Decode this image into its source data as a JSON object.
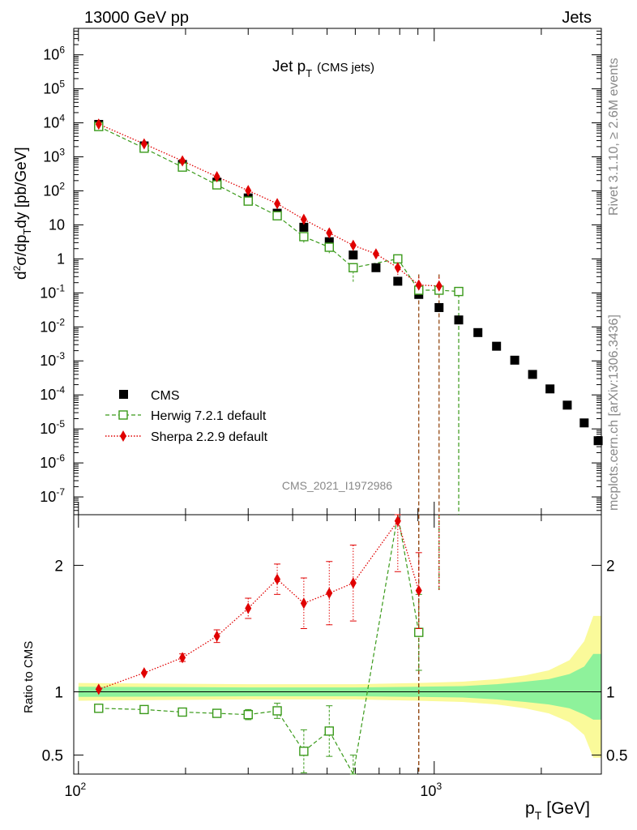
{
  "header": {
    "left": "13000 GeV pp",
    "right": "Jets"
  },
  "side_labels": {
    "rivet": "Rivet 3.1.10, ≥ 2.6M events",
    "mcplots": "mcplots.cern.ch [arXiv:1306.3436]"
  },
  "analysis_tag": "CMS_2021_I1972986",
  "main_title": {
    "base": "Jet p",
    "sub": "T",
    "extra": "(CMS jets)"
  },
  "ylabel_main": "d²σ/dp_T dy [pb/GeV]",
  "ylabel_ratio": "Ratio to CMS",
  "xlabel": {
    "base": "p",
    "sub": "T",
    "unit": "[GeV]"
  },
  "legend": [
    {
      "key": "cms",
      "label": "CMS"
    },
    {
      "key": "herwig",
      "label": "Herwig 7.2.1 default"
    },
    {
      "key": "sherpa",
      "label": "Sherpa 2.2.9 default"
    }
  ],
  "colors": {
    "cms": "#000000",
    "herwig": "#3a9a1a",
    "sherpa": "#e00000",
    "band_inner": "#8ef29b",
    "band_outer": "#fafa9a",
    "vline": "#8b3a00"
  },
  "chart_data": {
    "type": "scatter",
    "x_scale": "log",
    "y_scale_main": "log",
    "xlim": [
      97,
      2950
    ],
    "ylim_main": [
      3e-08,
      6000000.0
    ],
    "ylim_ratio": [
      0.35,
      2.4
    ],
    "y_ticks_main": [
      {
        "v": 1000000.0,
        "m": "10",
        "e": "6"
      },
      {
        "v": 100000.0,
        "m": "10",
        "e": "5"
      },
      {
        "v": 10000.0,
        "m": "10",
        "e": "4"
      },
      {
        "v": 1000.0,
        "m": "10",
        "e": "3"
      },
      {
        "v": 100.0,
        "m": "10",
        "e": "2"
      },
      {
        "v": 10,
        "m": "10",
        "e": ""
      },
      {
        "v": 1,
        "m": "1",
        "e": ""
      },
      {
        "v": 0.1,
        "m": "10",
        "e": "-1"
      },
      {
        "v": 0.01,
        "m": "10",
        "e": "-2"
      },
      {
        "v": 0.001,
        "m": "10",
        "e": "-3"
      },
      {
        "v": 0.0001,
        "m": "10",
        "e": "-4"
      },
      {
        "v": 1e-05,
        "m": "10",
        "e": "-5"
      },
      {
        "v": 1e-06,
        "m": "10",
        "e": "-6"
      },
      {
        "v": 1e-07,
        "m": "10",
        "e": "-7"
      }
    ],
    "y_ticks_ratio": [
      {
        "v": 2,
        "label": "2"
      },
      {
        "v": 1,
        "label": "1"
      },
      {
        "v": 0.5,
        "label": "0.5"
      }
    ],
    "x_ticks": [
      {
        "v": 100,
        "m": "10",
        "e": "2"
      },
      {
        "v": 1000,
        "m": "10",
        "e": "3"
      }
    ],
    "series": [
      {
        "name": "CMS",
        "key": "cms",
        "x": [
          114,
          153,
          196,
          245,
          300,
          362,
          430,
          507,
          592,
          686,
          790,
          905,
          1032,
          1172,
          1327,
          1497,
          1684,
          1890,
          2116,
          2366,
          2640,
          2890
        ],
        "y": [
          9000,
          2100,
          600,
          180,
          62,
          22,
          8.5,
          3.2,
          1.3,
          0.55,
          0.22,
          0.09,
          0.037,
          0.016,
          0.0068,
          0.0027,
          0.00105,
          0.0004,
          0.00015,
          5e-05,
          1.5e-05,
          4.5e-06
        ]
      },
      {
        "name": "Herwig 7.2.1 default",
        "key": "herwig",
        "x": [
          114,
          153,
          196,
          245,
          300,
          362,
          430,
          507,
          592,
          790,
          905,
          1032,
          1172
        ],
        "y": [
          7800,
          1800,
          500,
          150,
          50,
          18.5,
          4.5,
          2.2,
          0.55,
          1.0,
          0.12,
          0.12,
          0.11
        ],
        "yerr_lo": [
          0,
          0,
          0,
          25,
          8,
          4,
          1.5,
          0.8,
          0.35,
          0,
          0.12,
          0.12,
          0.11
        ],
        "yerr_hi": [
          0,
          0,
          0,
          25,
          8,
          4,
          1.5,
          0.8,
          0.2,
          0,
          0.12,
          0.12,
          0.11
        ]
      },
      {
        "name": "Sherpa 2.2.9 default",
        "key": "sherpa",
        "x": [
          114,
          153,
          196,
          245,
          300,
          362,
          430,
          507,
          592,
          686,
          790,
          905,
          1032
        ],
        "y": [
          9200,
          2400,
          760,
          260,
          102,
          42,
          14.5,
          5.8,
          2.5,
          1.4,
          0.55,
          0.17,
          0.16
        ],
        "yerr_lo": [
          0,
          0,
          0,
          0,
          0,
          0,
          0,
          0,
          0,
          0,
          0.25,
          0.17,
          0.16
        ],
        "yerr_hi": [
          0,
          0,
          0,
          0,
          0,
          0,
          0,
          0,
          0,
          0,
          0.1,
          0.1,
          0.1
        ]
      }
    ],
    "ratio": {
      "herwig": {
        "x": [
          114,
          153,
          196,
          245,
          300,
          362,
          430,
          507,
          592,
          790,
          905
        ],
        "y": [
          0.87,
          0.86,
          0.84,
          0.83,
          0.82,
          0.85,
          0.53,
          0.69,
          0.3,
          3.0,
          1.47
        ],
        "err": [
          0,
          0,
          0,
          0.03,
          0.04,
          0.06,
          0.17,
          0.2,
          0.2,
          0,
          0.3
        ]
      },
      "sherpa": {
        "x": [
          114,
          153,
          196,
          245,
          300,
          362,
          430,
          507,
          592,
          790,
          905
        ],
        "y": [
          1.02,
          1.15,
          1.27,
          1.44,
          1.66,
          1.89,
          1.7,
          1.78,
          1.86,
          2.35,
          1.8
        ],
        "err": [
          0,
          0,
          0.03,
          0.05,
          0.08,
          0.12,
          0.2,
          0.25,
          0.3,
          0.4,
          0.3
        ]
      },
      "band": {
        "x": [
          100,
          300,
          600,
          900,
          1200,
          1500,
          1800,
          2100,
          2400,
          2640,
          2800,
          2950
        ],
        "inner_lo": [
          0.96,
          0.965,
          0.965,
          0.96,
          0.955,
          0.94,
          0.92,
          0.9,
          0.87,
          0.82,
          0.78,
          0.78
        ],
        "inner_hi": [
          1.04,
          1.035,
          1.035,
          1.04,
          1.045,
          1.06,
          1.08,
          1.1,
          1.14,
          1.2,
          1.3,
          1.3
        ],
        "outer_lo": [
          0.93,
          0.94,
          0.94,
          0.93,
          0.92,
          0.9,
          0.87,
          0.83,
          0.76,
          0.66,
          0.48,
          0.48
        ],
        "outer_hi": [
          1.07,
          1.06,
          1.06,
          1.07,
          1.08,
          1.1,
          1.13,
          1.17,
          1.25,
          1.4,
          1.6,
          1.6
        ]
      },
      "vlines_x": [
        905,
        1032
      ]
    }
  }
}
